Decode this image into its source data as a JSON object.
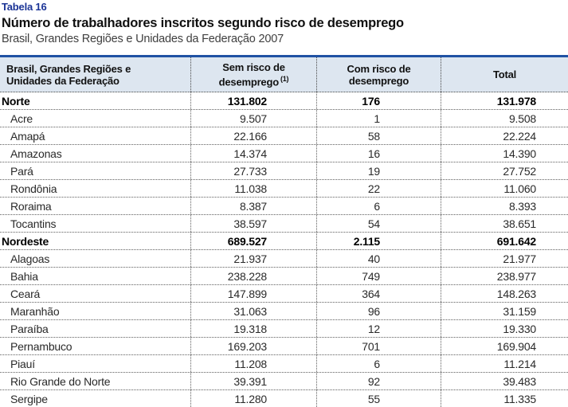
{
  "header": {
    "table_label": "Tabela 16",
    "title": "Número de trabalhadores inscritos segundo risco de desemprego",
    "subtitle": "Brasil, Grandes Regiões e Unidades da Federação 2007"
  },
  "table": {
    "columns": [
      {
        "line1": "Brasil, Grandes Regiões e",
        "line2": "Unidades da Federação",
        "footnote": ""
      },
      {
        "line1": "Sem risco de",
        "line2": "desemprego",
        "footnote": "(1)"
      },
      {
        "line1": "Com risco de",
        "line2": "desemprego",
        "footnote": ""
      },
      {
        "line1": "Total",
        "line2": "",
        "footnote": ""
      }
    ],
    "rows": [
      {
        "name": "Norte",
        "level": "region",
        "sem_risco": "131.802",
        "com_risco": "176",
        "total": "131.978"
      },
      {
        "name": "Acre",
        "level": "state",
        "sem_risco": "9.507",
        "com_risco": "1",
        "total": "9.508"
      },
      {
        "name": "Amapá",
        "level": "state",
        "sem_risco": "22.166",
        "com_risco": "58",
        "total": "22.224"
      },
      {
        "name": "Amazonas",
        "level": "state",
        "sem_risco": "14.374",
        "com_risco": "16",
        "total": "14.390"
      },
      {
        "name": "Pará",
        "level": "state",
        "sem_risco": "27.733",
        "com_risco": "19",
        "total": "27.752"
      },
      {
        "name": "Rondônia",
        "level": "state",
        "sem_risco": "11.038",
        "com_risco": "22",
        "total": "11.060"
      },
      {
        "name": "Roraima",
        "level": "state",
        "sem_risco": "8.387",
        "com_risco": "6",
        "total": "8.393"
      },
      {
        "name": "Tocantins",
        "level": "state",
        "sem_risco": "38.597",
        "com_risco": "54",
        "total": "38.651"
      },
      {
        "name": "Nordeste",
        "level": "region",
        "sem_risco": "689.527",
        "com_risco": "2.115",
        "total": "691.642"
      },
      {
        "name": "Alagoas",
        "level": "state",
        "sem_risco": "21.937",
        "com_risco": "40",
        "total": "21.977"
      },
      {
        "name": "Bahia",
        "level": "state",
        "sem_risco": "238.228",
        "com_risco": "749",
        "total": "238.977"
      },
      {
        "name": "Ceará",
        "level": "state",
        "sem_risco": "147.899",
        "com_risco": "364",
        "total": "148.263"
      },
      {
        "name": "Maranhão",
        "level": "state",
        "sem_risco": "31.063",
        "com_risco": "96",
        "total": "31.159"
      },
      {
        "name": "Paraíba",
        "level": "state",
        "sem_risco": "19.318",
        "com_risco": "12",
        "total": "19.330"
      },
      {
        "name": "Pernambuco",
        "level": "state",
        "sem_risco": "169.203",
        "com_risco": "701",
        "total": "169.904"
      },
      {
        "name": "Piauí",
        "level": "state",
        "sem_risco": "11.208",
        "com_risco": "6",
        "total": "11.214"
      },
      {
        "name": "Rio Grande do Norte",
        "level": "state",
        "sem_risco": "39.391",
        "com_risco": "92",
        "total": "39.483"
      },
      {
        "name": "Sergipe",
        "level": "state",
        "sem_risco": "11.280",
        "com_risco": "55",
        "total": "11.335"
      }
    ]
  },
  "colors": {
    "accent_blue": "#1b3496",
    "table_top_border": "#2052a3",
    "header_bg": "#dde6f0",
    "dotted_line": "#5f5f5f"
  }
}
